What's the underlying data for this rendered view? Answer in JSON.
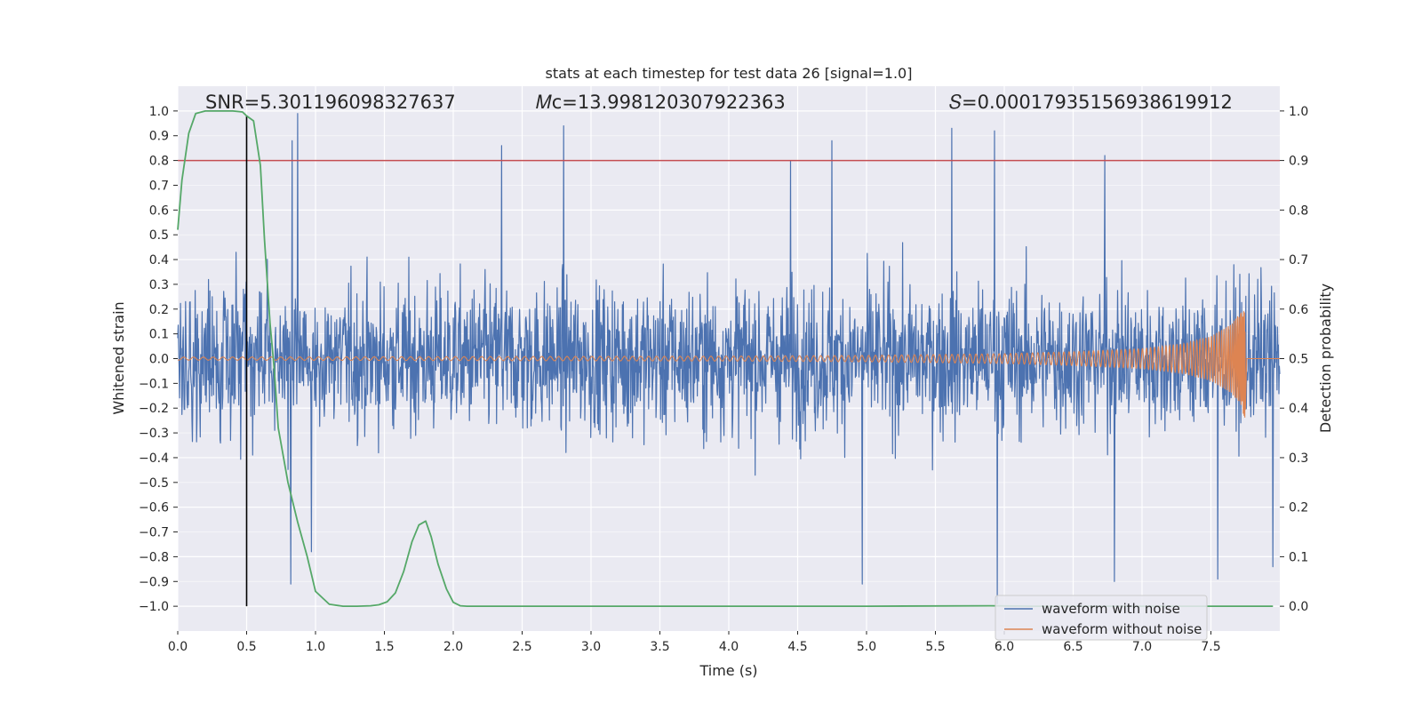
{
  "chart_data": {
    "type": "line",
    "title": "stats at each timestep for test data 26 [signal=1.0]",
    "xlabel": "Time (s)",
    "ylabel": "Whitened strain",
    "y2label": "Detection probability",
    "xlim": [
      0,
      8
    ],
    "ylim": [
      -1.1,
      1.1
    ],
    "y2lim": [
      -0.05,
      1.05
    ],
    "xticks": [
      0.0,
      0.5,
      1.0,
      1.5,
      2.0,
      2.5,
      3.0,
      3.5,
      4.0,
      4.5,
      5.0,
      5.5,
      6.0,
      6.5,
      7.0,
      7.5
    ],
    "xtick_labels": [
      "0.0",
      "0.5",
      "1.0",
      "1.5",
      "2.0",
      "2.5",
      "3.0",
      "3.5",
      "4.0",
      "4.5",
      "5.0",
      "5.5",
      "6.0",
      "6.5",
      "7.0",
      "7.5"
    ],
    "yticks": [
      1.0,
      0.9,
      0.8,
      0.7,
      0.6,
      0.5,
      0.4,
      0.3,
      0.2,
      0.1,
      0.0,
      -0.1,
      -0.2,
      -0.3,
      -0.4,
      -0.5,
      -0.6,
      -0.7,
      -0.8,
      -0.9,
      -1.0
    ],
    "ytick_labels": [
      "1.0",
      "0.9",
      "0.8",
      "0.7",
      "0.6",
      "0.5",
      "0.4",
      "0.3",
      "0.2",
      "0.1",
      "0.0",
      "−0.1",
      "−0.2",
      "−0.3",
      "−0.4",
      "−0.5",
      "−0.6",
      "−0.7",
      "−0.8",
      "−0.9",
      "−1.0"
    ],
    "y2ticks": [
      1.0,
      0.9,
      0.8,
      0.7,
      0.6,
      0.5,
      0.4,
      0.3,
      0.2,
      0.1,
      0.0
    ],
    "y2tick_labels": [
      "1.0",
      "0.9",
      "0.8",
      "0.7",
      "0.6",
      "0.5",
      "0.4",
      "0.3",
      "0.2",
      "0.1",
      "0.0"
    ],
    "grid": true,
    "annotations": [
      {
        "name": "snr-annotation",
        "text": "SNR=5.301196098327637",
        "x": 0.2,
        "y": 1.01
      },
      {
        "name": "mc-annotation",
        "text": "𝑀ᴄ=13.998120307922363",
        "x": 2.6,
        "y": 1.01
      },
      {
        "name": "s-annotation",
        "text": "𝑆=0.00017935156938619912",
        "x": 5.6,
        "y": 1.01
      }
    ],
    "threshold_line": {
      "axis": "y2",
      "value": 0.9,
      "color": "#c44e52"
    },
    "vertical_marker": {
      "x": 0.5,
      "ymin": -1.0,
      "ymax": 0.98,
      "color": "#000000"
    },
    "series": [
      {
        "name": "waveform with noise",
        "axis": "y",
        "color": "#4c72b0",
        "description": "dense noisy whitened strain, roughly within ±0.5 with spikes to about ±1",
        "spikes": [
          {
            "x": 0.83,
            "y": 0.88
          },
          {
            "x": 0.87,
            "y": 0.99
          },
          {
            "x": 2.35,
            "y": 0.86
          },
          {
            "x": 2.8,
            "y": 0.94
          },
          {
            "x": 4.45,
            "y": 0.8
          },
          {
            "x": 4.75,
            "y": 0.88
          },
          {
            "x": 5.62,
            "y": 0.93
          },
          {
            "x": 5.93,
            "y": 0.92
          },
          {
            "x": 6.73,
            "y": 0.82
          },
          {
            "x": 0.82,
            "y": -0.91
          },
          {
            "x": 0.97,
            "y": -0.78
          },
          {
            "x": 4.97,
            "y": -0.91
          },
          {
            "x": 5.95,
            "y": -0.99
          },
          {
            "x": 6.8,
            "y": -0.9
          },
          {
            "x": 7.55,
            "y": -0.89
          },
          {
            "x": 7.95,
            "y": -0.84
          }
        ]
      },
      {
        "name": "waveform without noise",
        "axis": "y",
        "color": "#dd8452",
        "description": "chirp signal, amplitude growing to merger near t=7.75 s",
        "merger_time": 7.75,
        "amplitude_points": [
          {
            "x": 0.0,
            "y": 0.006
          },
          {
            "x": 2.0,
            "y": 0.008
          },
          {
            "x": 4.0,
            "y": 0.01
          },
          {
            "x": 5.0,
            "y": 0.013
          },
          {
            "x": 6.0,
            "y": 0.02
          },
          {
            "x": 6.5,
            "y": 0.028
          },
          {
            "x": 7.0,
            "y": 0.04
          },
          {
            "x": 7.3,
            "y": 0.06
          },
          {
            "x": 7.5,
            "y": 0.09
          },
          {
            "x": 7.65,
            "y": 0.14
          },
          {
            "x": 7.72,
            "y": 0.19
          },
          {
            "x": 7.75,
            "y": 0.2
          }
        ],
        "min_value": -0.24
      },
      {
        "name": "detection probability",
        "axis": "y2",
        "color": "#55a868",
        "x": [
          0.0,
          0.03,
          0.08,
          0.13,
          0.2,
          0.3,
          0.4,
          0.47,
          0.5,
          0.55,
          0.6,
          0.63,
          0.67,
          0.7,
          0.73,
          0.8,
          0.87,
          0.94,
          1.0,
          1.1,
          1.2,
          1.3,
          1.4,
          1.46,
          1.52,
          1.58,
          1.64,
          1.7,
          1.75,
          1.8,
          1.84,
          1.89,
          1.95,
          2.0,
          2.05,
          2.1,
          3.0,
          4.0,
          5.0,
          5.9,
          6.2,
          7.0,
          7.5,
          7.95
        ],
        "y": [
          0.76,
          0.86,
          0.955,
          0.995,
          1.0,
          1.0,
          1.0,
          0.998,
          0.99,
          0.98,
          0.89,
          0.74,
          0.57,
          0.48,
          0.36,
          0.25,
          0.17,
          0.1,
          0.03,
          0.004,
          0.0,
          0.0,
          0.001,
          0.003,
          0.009,
          0.027,
          0.07,
          0.13,
          0.164,
          0.172,
          0.14,
          0.085,
          0.035,
          0.008,
          0.001,
          0.0,
          0.0,
          0.0,
          0.0,
          0.001,
          0.0,
          0.0,
          0.0,
          0.0
        ]
      }
    ],
    "legend": {
      "placement": "lower-right",
      "entries": [
        {
          "label": "waveform with noise",
          "color": "#4c72b0"
        },
        {
          "label": "waveform without noise",
          "color": "#dd8452"
        }
      ]
    }
  }
}
